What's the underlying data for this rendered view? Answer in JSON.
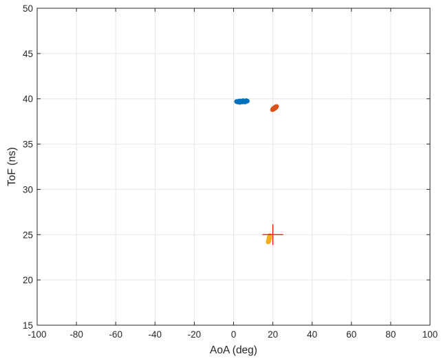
{
  "chart_data": {
    "type": "scatter",
    "xlabel": "AoA (deg)",
    "ylabel": "ToF (ns)",
    "xlim": [
      -100,
      100
    ],
    "ylim": [
      15,
      50
    ],
    "xticks": [
      -100,
      -80,
      -60,
      -40,
      -20,
      0,
      20,
      40,
      60,
      80,
      100
    ],
    "yticks": [
      15,
      20,
      25,
      30,
      35,
      40,
      45,
      50
    ],
    "grid": true,
    "series": [
      {
        "color": "#0072BD",
        "points": [
          [
            1.5,
            39.7
          ],
          [
            2.0,
            39.65
          ],
          [
            2.5,
            39.7
          ],
          [
            3.0,
            39.65
          ],
          [
            3.5,
            39.75
          ],
          [
            4.0,
            39.7
          ],
          [
            4.5,
            39.65
          ],
          [
            5.0,
            39.7
          ],
          [
            5.5,
            39.75
          ],
          [
            6.0,
            39.7
          ],
          [
            6.5,
            39.8
          ],
          [
            7.0,
            39.75
          ],
          [
            3.2,
            39.6
          ],
          [
            4.8,
            39.8
          ],
          [
            2.8,
            39.75
          ],
          [
            5.8,
            39.65
          ]
        ]
      },
      {
        "color": "#D95319",
        "points": [
          [
            19.8,
            38.8
          ],
          [
            20.1,
            38.9
          ],
          [
            20.4,
            38.85
          ],
          [
            20.7,
            39.0
          ],
          [
            21.0,
            38.95
          ],
          [
            21.3,
            39.1
          ],
          [
            21.6,
            39.05
          ],
          [
            21.9,
            39.15
          ],
          [
            20.5,
            38.95
          ],
          [
            21.2,
            39.0
          ]
        ]
      },
      {
        "color": "#EDB120",
        "points": [
          [
            17.6,
            24.2
          ],
          [
            17.8,
            24.4
          ],
          [
            18.0,
            24.5
          ],
          [
            18.1,
            24.7
          ],
          [
            18.3,
            24.8
          ],
          [
            18.5,
            24.9
          ],
          [
            18.0,
            24.3
          ],
          [
            18.4,
            24.6
          ]
        ]
      }
    ],
    "marker": {
      "type": "plus",
      "x": 20,
      "y": 25,
      "color": "#FF0000"
    }
  }
}
